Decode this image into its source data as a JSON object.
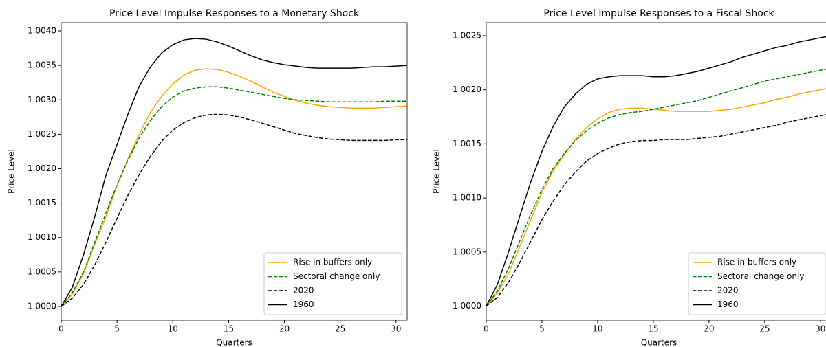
{
  "chart_data": [
    {
      "type": "line",
      "title": "Price Level Impulse Responses to a Monetary Shock",
      "x_label": "Quarters",
      "y_label": "Price Level",
      "x": [
        0,
        1,
        2,
        3,
        4,
        5,
        6,
        7,
        8,
        9,
        10,
        11,
        12,
        13,
        14,
        15,
        16,
        17,
        18,
        19,
        20,
        21,
        22,
        23,
        24,
        25,
        26,
        27,
        28,
        29,
        30,
        31
      ],
      "xlim": [
        0,
        31
      ],
      "xticks": [
        0,
        5,
        10,
        15,
        20,
        25,
        30
      ],
      "ylim": [
        0.9998,
        1.00412
      ],
      "yticks": [
        {
          "value": 1.0,
          "label": "1.0000"
        },
        {
          "value": 1.0005,
          "label": "1.0005"
        },
        {
          "value": 1.001,
          "label": "1.0010"
        },
        {
          "value": 1.0015,
          "label": "1.0015"
        },
        {
          "value": 1.002,
          "label": "1.0020"
        },
        {
          "value": 1.0025,
          "label": "1.0025"
        },
        {
          "value": 1.003,
          "label": "1.0030"
        },
        {
          "value": 1.0035,
          "label": "1.0035"
        },
        {
          "value": 1.004,
          "label": "1.0040"
        }
      ],
      "legend": "lower right",
      "series": [
        {
          "name": "Rise in buffers only",
          "color": "#ffa500",
          "linestyle": "solid",
          "values": [
            1.0,
            1.00018,
            1.00048,
            1.0009,
            1.0013,
            1.00175,
            1.00215,
            1.0025,
            1.00282,
            1.00305,
            1.00323,
            1.00336,
            1.00343,
            1.00345,
            1.00344,
            1.0034,
            1.00334,
            1.00327,
            1.00319,
            1.00311,
            1.00305,
            1.00299,
            1.00295,
            1.00292,
            1.0029,
            1.00289,
            1.00288,
            1.00288,
            1.00288,
            1.00289,
            1.0029,
            1.00291
          ]
        },
        {
          "name": "Sectoral change only",
          "color": "#008000",
          "linestyle": "dashed",
          "values": [
            1.0,
            1.0002,
            1.0005,
            1.00093,
            1.00135,
            1.00177,
            1.00213,
            1.00245,
            1.0027,
            1.0029,
            1.00304,
            1.00313,
            1.00317,
            1.00319,
            1.00319,
            1.00317,
            1.00314,
            1.00311,
            1.00308,
            1.00305,
            1.00302,
            1.003,
            1.00299,
            1.00298,
            1.00297,
            1.00297,
            1.00297,
            1.00297,
            1.00297,
            1.00298,
            1.00298,
            1.00298
          ]
        },
        {
          "name": "2020",
          "color": "#000000",
          "linestyle": "dashed",
          "values": [
            1.0,
            1.00012,
            1.00032,
            1.0006,
            1.00093,
            1.00128,
            1.00162,
            1.00192,
            1.00218,
            1.0024,
            1.00256,
            1.00267,
            1.00274,
            1.00278,
            1.00279,
            1.00278,
            1.00275,
            1.00271,
            1.00266,
            1.00261,
            1.00256,
            1.00251,
            1.00248,
            1.00245,
            1.00243,
            1.00242,
            1.00241,
            1.00241,
            1.00241,
            1.00241,
            1.00242,
            1.00242
          ]
        },
        {
          "name": "1960",
          "color": "#000000",
          "linestyle": "solid",
          "values": [
            1.0,
            1.00028,
            1.00075,
            1.0013,
            1.0019,
            1.00235,
            1.0028,
            1.0032,
            1.00348,
            1.00368,
            1.0038,
            1.00387,
            1.00389,
            1.00388,
            1.00384,
            1.00378,
            1.00371,
            1.00364,
            1.00358,
            1.00354,
            1.00351,
            1.00349,
            1.00347,
            1.00346,
            1.00346,
            1.00346,
            1.00346,
            1.00347,
            1.00348,
            1.00348,
            1.00349,
            1.0035
          ]
        }
      ]
    },
    {
      "type": "line",
      "title": "Price Level Impulse Responses to a Fiscal Shock",
      "x_label": "Quarters",
      "y_label": "Price Level",
      "x": [
        0,
        1,
        2,
        3,
        4,
        5,
        6,
        7,
        8,
        9,
        10,
        11,
        12,
        13,
        14,
        15,
        16,
        17,
        18,
        19,
        20,
        21,
        22,
        23,
        24,
        25,
        26,
        27,
        28,
        29,
        30,
        31
      ],
      "xlim": [
        0,
        31
      ],
      "xticks": [
        0,
        5,
        10,
        15,
        20,
        25,
        30
      ],
      "ylim": [
        0.99987,
        1.00262
      ],
      "yticks": [
        {
          "value": 1.0,
          "label": "1.0000"
        },
        {
          "value": 1.0005,
          "label": "1.0005"
        },
        {
          "value": 1.001,
          "label": "1.0010"
        },
        {
          "value": 1.0015,
          "label": "1.0015"
        },
        {
          "value": 1.002,
          "label": "1.0020"
        },
        {
          "value": 1.0025,
          "label": "1.0025"
        }
      ],
      "legend": "lower right",
      "series": [
        {
          "name": "Rise in buffers only",
          "color": "#ffa500",
          "linestyle": "solid",
          "values": [
            1.0,
            1.00012,
            1.0003,
            1.00055,
            1.0008,
            1.00105,
            1.00125,
            1.0014,
            1.00154,
            1.00165,
            1.00173,
            1.00179,
            1.00182,
            1.00183,
            1.00183,
            1.00182,
            1.00181,
            1.0018,
            1.0018,
            1.0018,
            1.0018,
            1.00181,
            1.00182,
            1.00184,
            1.00186,
            1.00188,
            1.00191,
            1.00193,
            1.00196,
            1.00198,
            1.002,
            1.00202
          ]
        },
        {
          "name": "Sectoral change only",
          "color": "#008000",
          "linestyle": "dashed",
          "values": [
            1.0,
            1.00014,
            1.00035,
            1.0006,
            1.00085,
            1.00108,
            1.00127,
            1.00141,
            1.00153,
            1.00162,
            1.00169,
            1.00174,
            1.00177,
            1.00179,
            1.0018,
            1.00182,
            1.00184,
            1.00186,
            1.00188,
            1.0019,
            1.00193,
            1.00196,
            1.00199,
            1.00202,
            1.00205,
            1.00208,
            1.0021,
            1.00212,
            1.00214,
            1.00216,
            1.00218,
            1.0022
          ]
        },
        {
          "name": "2020",
          "color": "#000000",
          "linestyle": "dashed",
          "values": [
            1.0,
            1.00008,
            1.00022,
            1.0004,
            1.0006,
            1.0008,
            1.00097,
            1.00112,
            1.00124,
            1.00134,
            1.00141,
            1.00146,
            1.0015,
            1.00152,
            1.00153,
            1.00153,
            1.00154,
            1.00154,
            1.00154,
            1.00155,
            1.00156,
            1.00157,
            1.00159,
            1.00161,
            1.00163,
            1.00165,
            1.00167,
            1.0017,
            1.00172,
            1.00174,
            1.00176,
            1.00178
          ]
        },
        {
          "name": "1960",
          "color": "#000000",
          "linestyle": "solid",
          "values": [
            1.0,
            1.0002,
            1.0005,
            1.00083,
            1.00115,
            1.00143,
            1.00166,
            1.00184,
            1.00196,
            1.00205,
            1.0021,
            1.00212,
            1.00213,
            1.00213,
            1.00213,
            1.00212,
            1.00212,
            1.00213,
            1.00215,
            1.00217,
            1.0022,
            1.00223,
            1.00226,
            1.0023,
            1.00233,
            1.00236,
            1.00239,
            1.00241,
            1.00244,
            1.00246,
            1.00248,
            1.0025
          ]
        }
      ]
    }
  ]
}
